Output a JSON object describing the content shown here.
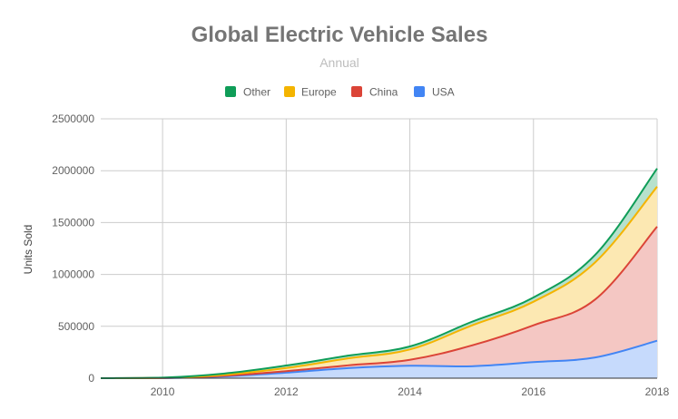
{
  "chart_data": {
    "type": "area",
    "stacked": true,
    "title": "Global Electric Vehicle Sales",
    "subtitle": "Annual",
    "xlabel": "",
    "ylabel": "Units Sold",
    "x": [
      2009,
      2010,
      2011,
      2012,
      2013,
      2014,
      2015,
      2016,
      2017,
      2018
    ],
    "xlim": [
      2009,
      2018
    ],
    "xticks": [
      "2010",
      "2012",
      "2014",
      "2016",
      "2018"
    ],
    "ylim": [
      0,
      2500000
    ],
    "yticks": [
      "0",
      "500000",
      "1000000",
      "1500000",
      "2000000",
      "2500000"
    ],
    "grid": true,
    "legend_position": "top",
    "series": [
      {
        "name": "USA",
        "color": "#4285f4",
        "fill": "#c6dafc",
        "values": [
          0,
          1000,
          18000,
          53000,
          97000,
          120000,
          115000,
          155000,
          200000,
          361000
        ]
      },
      {
        "name": "China",
        "color": "#db4437",
        "fill": "#f4c7c3",
        "values": [
          0,
          1000,
          5000,
          15000,
          27000,
          57000,
          200000,
          355000,
          560000,
          1100000
        ]
      },
      {
        "name": "Europe",
        "color": "#f4b400",
        "fill": "#fce8b2",
        "values": [
          0,
          1000,
          10000,
          30000,
          67000,
          100000,
          193000,
          227000,
          358000,
          385000
        ]
      },
      {
        "name": "Other",
        "color": "#0f9d58",
        "fill": "#b7e1cd",
        "values": [
          0,
          2000,
          12000,
          24000,
          26000,
          29000,
          35000,
          41000,
          72000,
          175000
        ]
      }
    ],
    "legend_order": [
      "Other",
      "Europe",
      "China",
      "USA"
    ]
  }
}
